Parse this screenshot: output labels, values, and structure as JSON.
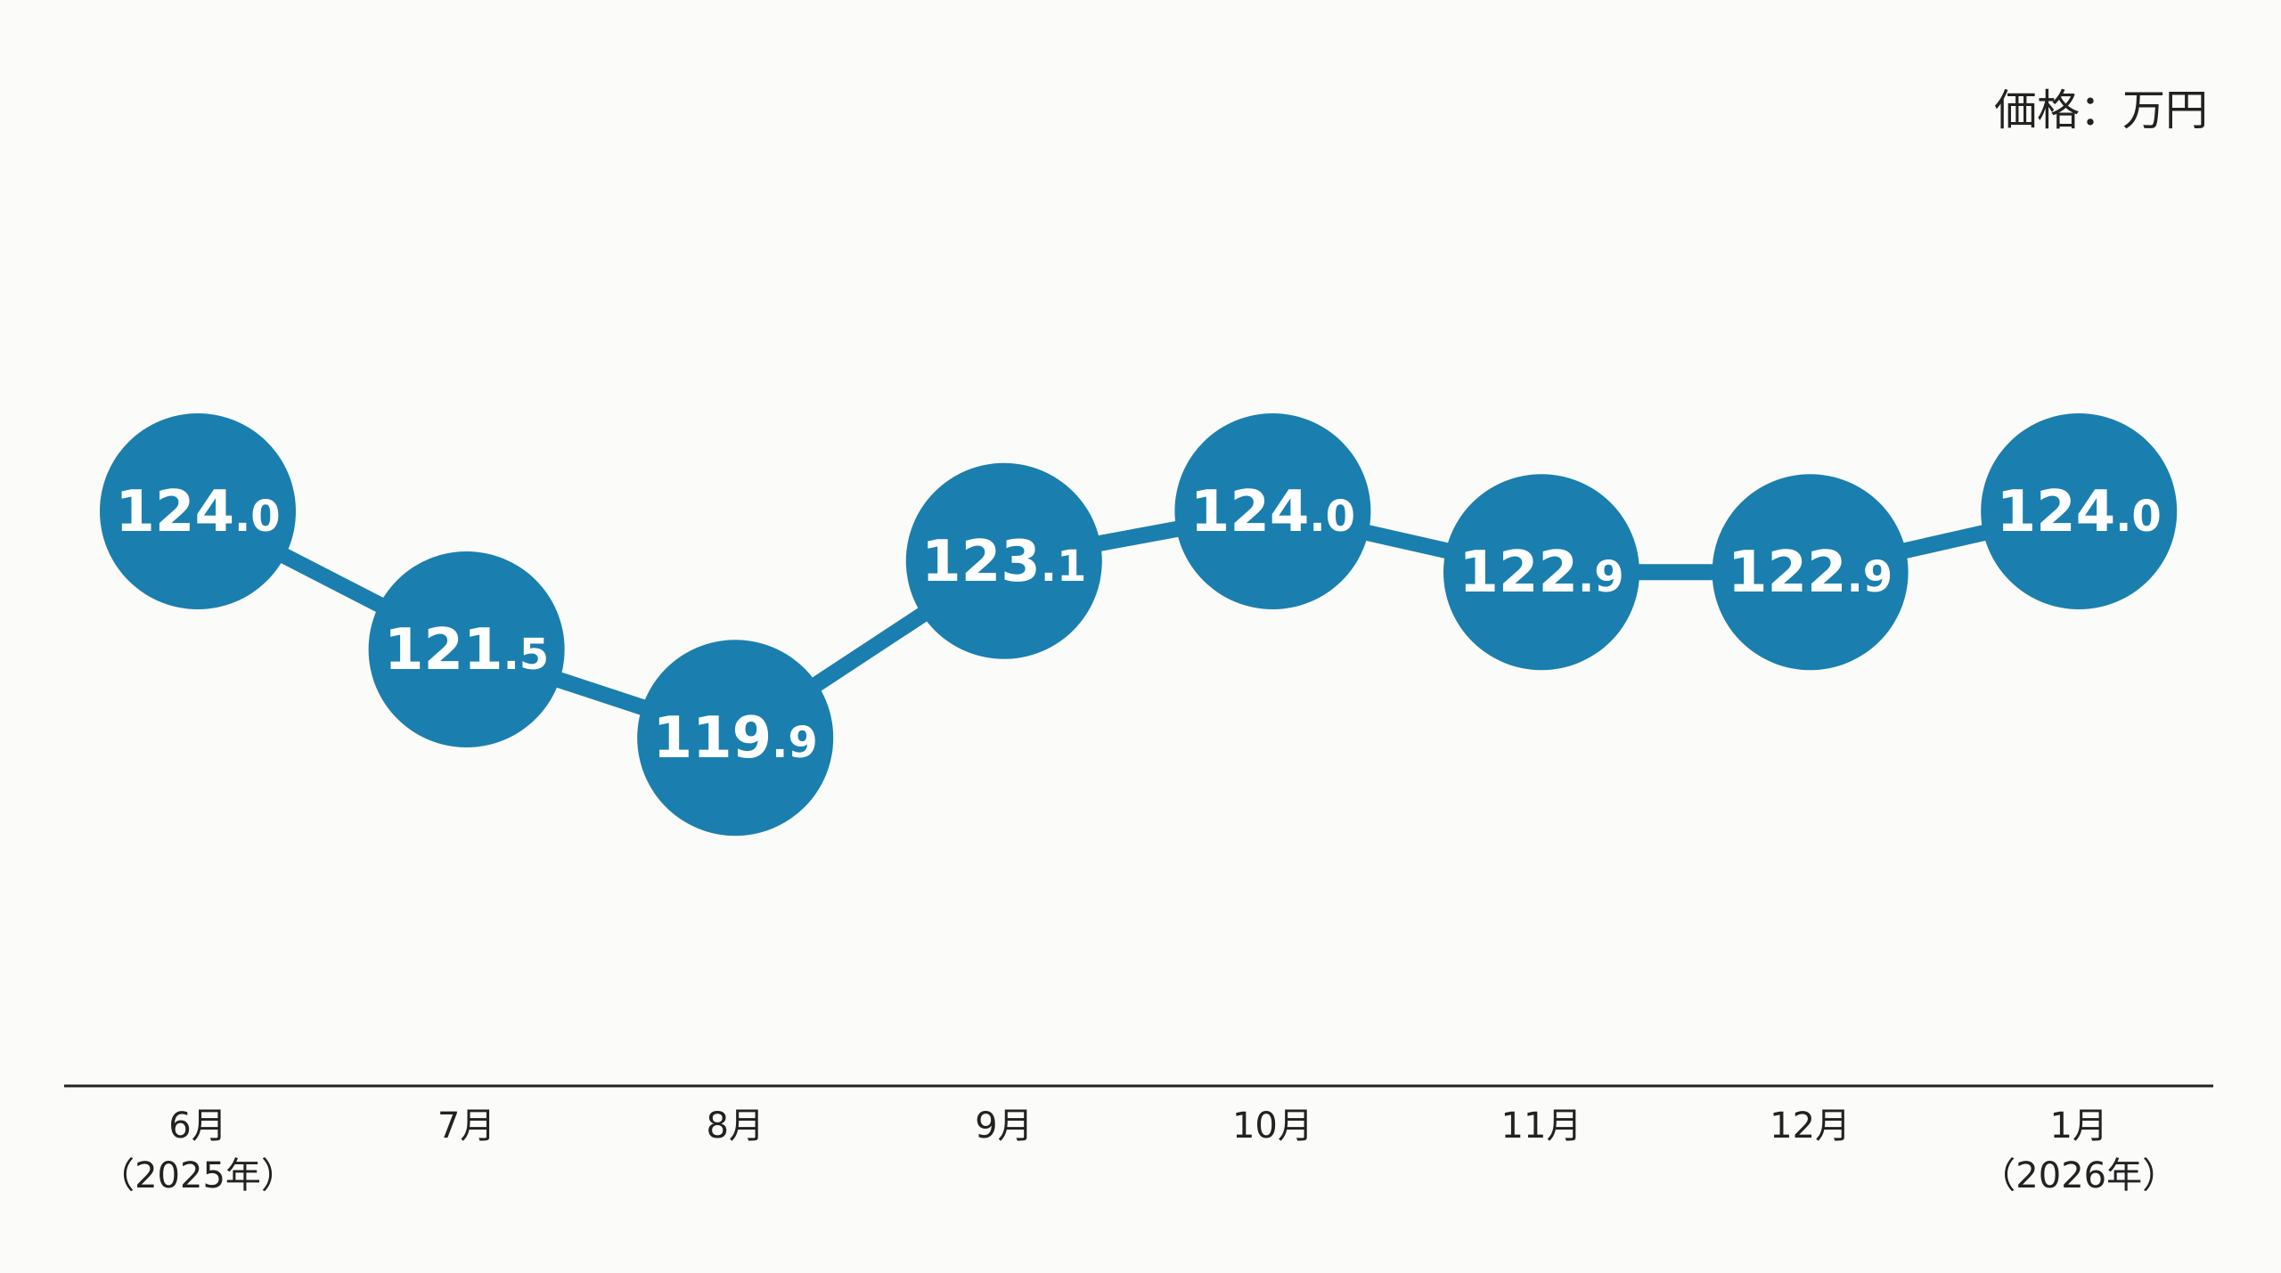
{
  "chart_data": {
    "type": "line",
    "unit_label": "価格：万円",
    "categories": [
      {
        "month": "6月",
        "year": "（2025年）"
      },
      {
        "month": "7月",
        "year": ""
      },
      {
        "month": "8月",
        "year": ""
      },
      {
        "month": "9月",
        "year": ""
      },
      {
        "month": "10月",
        "year": ""
      },
      {
        "month": "11月",
        "year": ""
      },
      {
        "month": "12月",
        "year": ""
      },
      {
        "month": "1月",
        "year": "（2026年）"
      }
    ],
    "values": [
      124.0,
      121.5,
      119.9,
      123.1,
      124.0,
      122.9,
      122.9,
      124.0
    ],
    "value_labels": [
      "124.0",
      "121.5",
      "119.9",
      "123.1",
      "124.0",
      "122.9",
      "122.9",
      "124.0"
    ],
    "grid": false,
    "legend": "none",
    "colors": {
      "marker": "#1a7fae",
      "line": "#1a7fae",
      "value_text": "#ffffff",
      "axis": "#222222"
    }
  }
}
